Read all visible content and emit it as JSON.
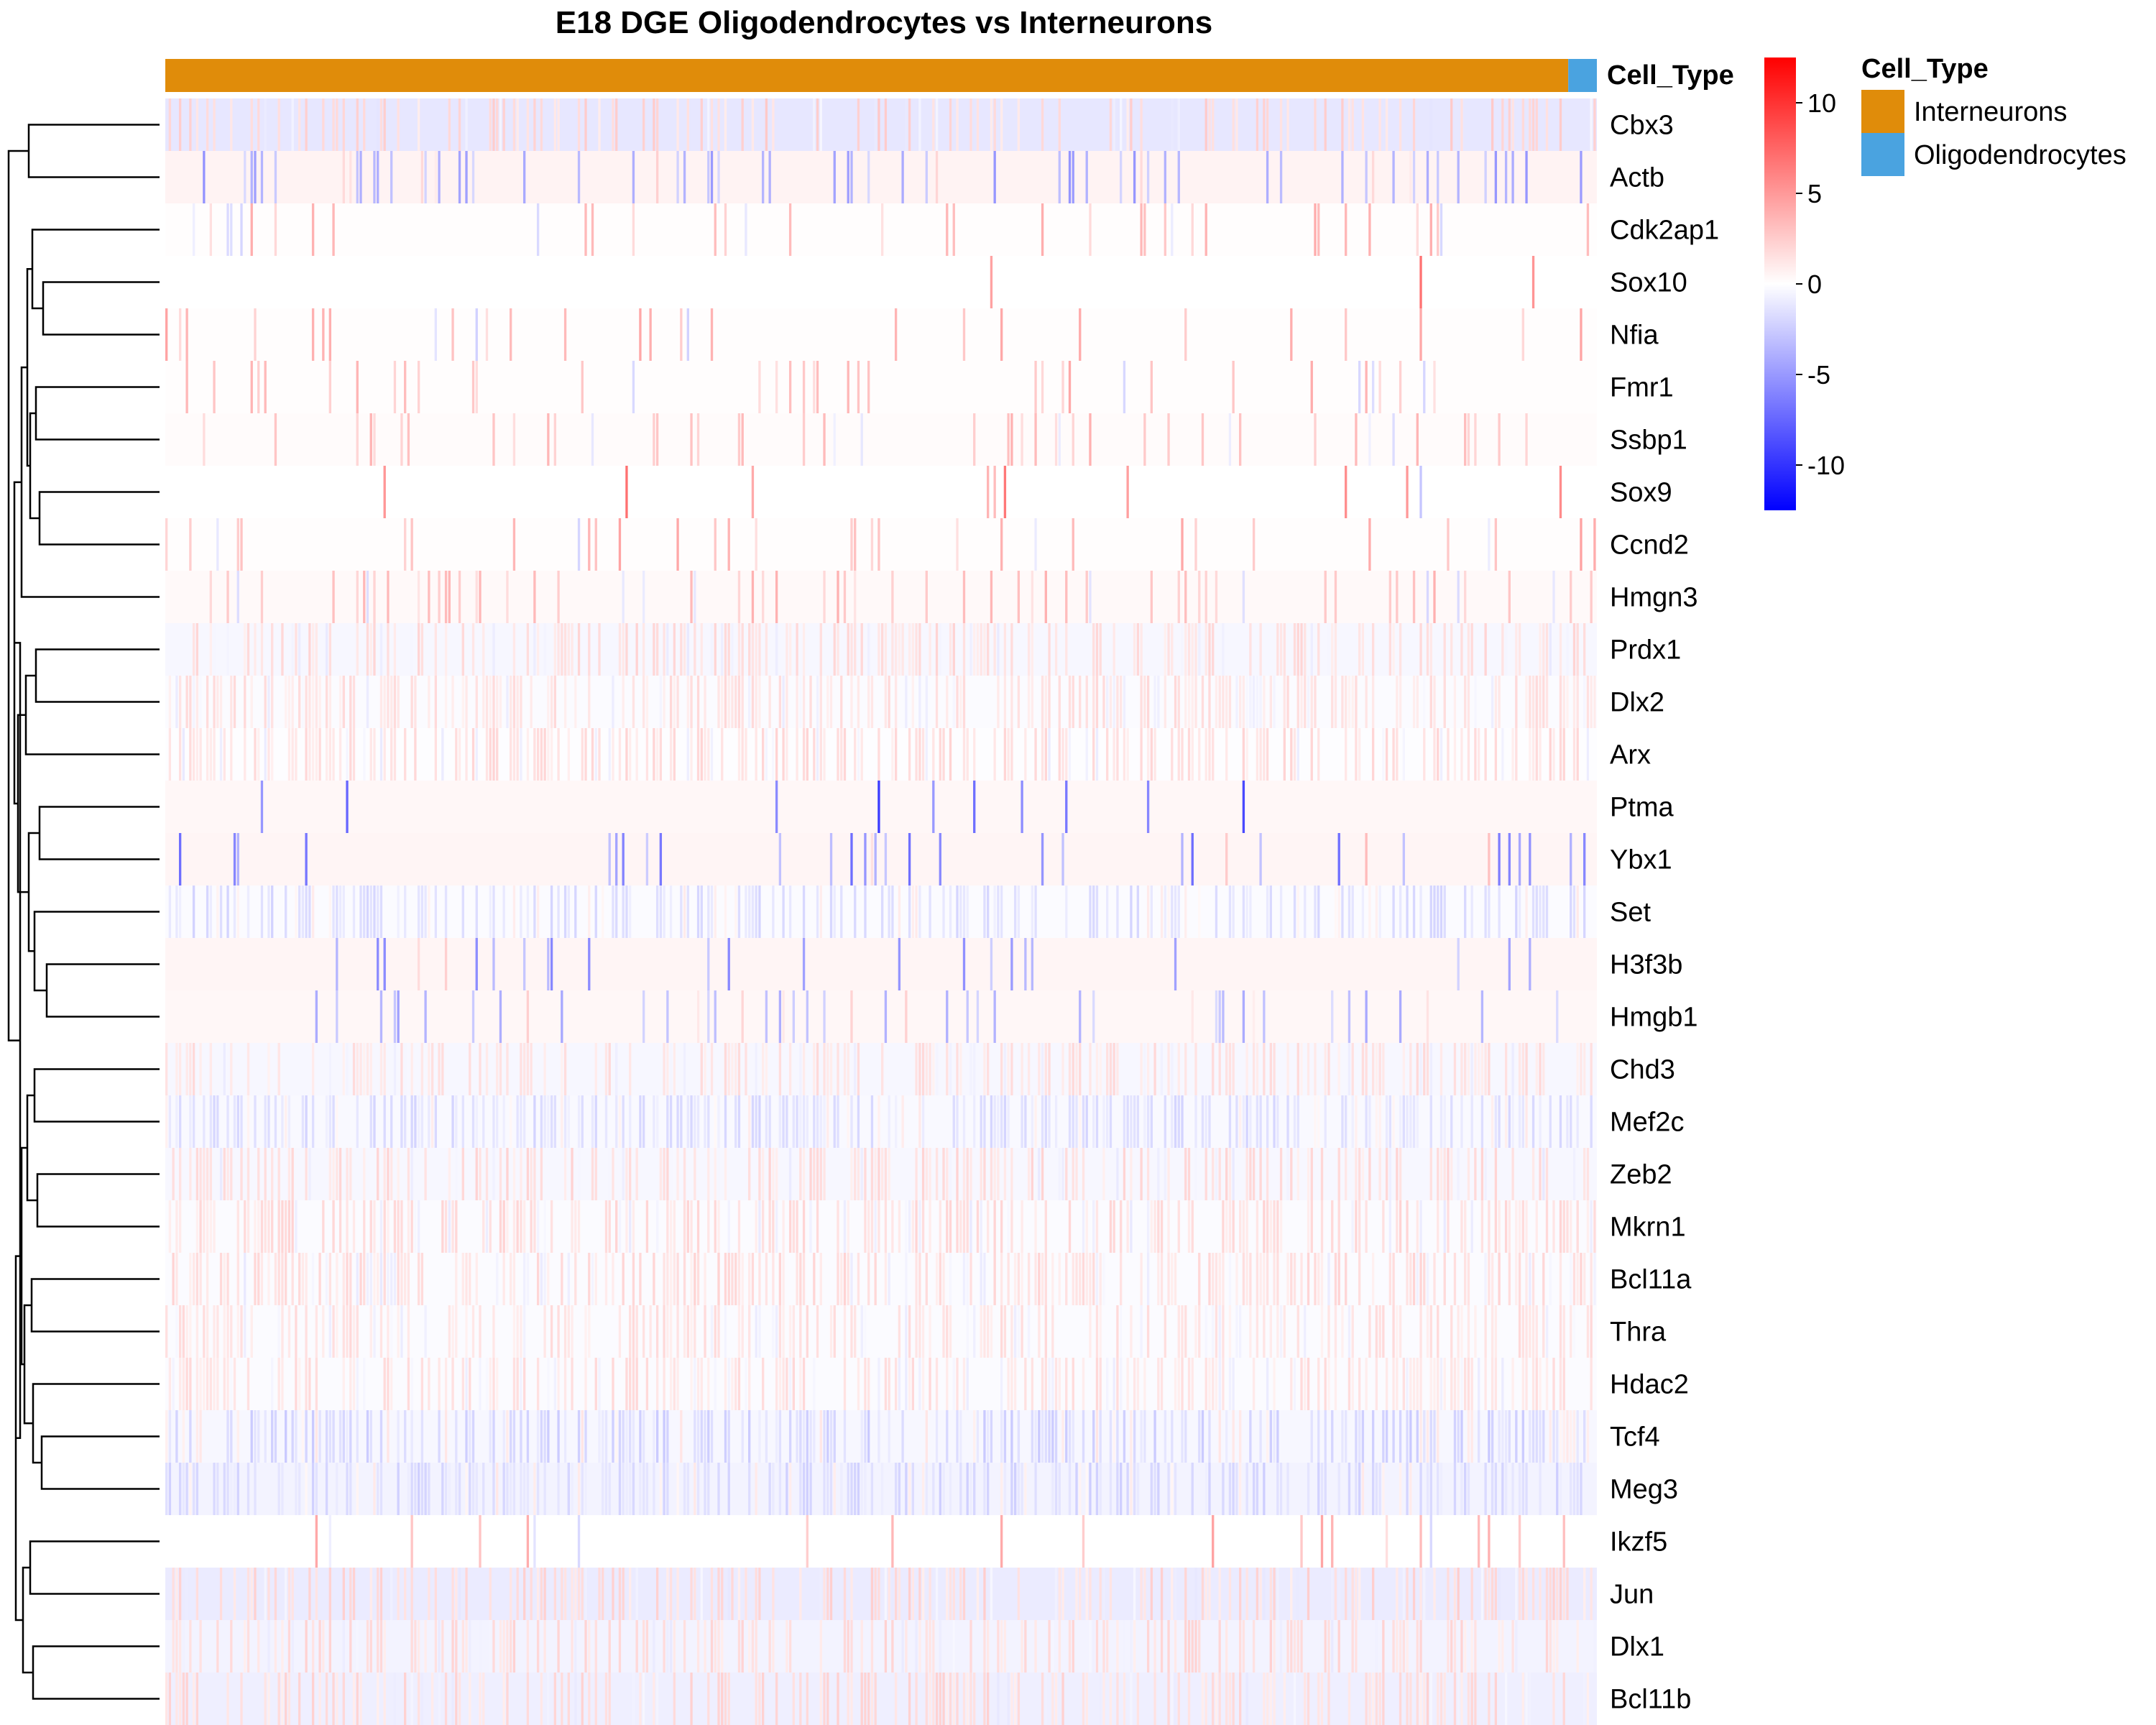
{
  "chart_data": {
    "type": "heatmap",
    "title": "E18 DGE Oligodendrocytes vs Interneurons",
    "annotation": {
      "label": "Cell_Type",
      "legend_title": "Cell_Type",
      "groups": [
        {
          "name": "Interneurons",
          "color": "#E08C0A",
          "fraction": 0.98
        },
        {
          "name": "Oligodendrocytes",
          "color": "#4AA3E0",
          "fraction": 0.02
        }
      ]
    },
    "genes": [
      "Cbx3",
      "Actb",
      "Cdk2ap1",
      "Sox10",
      "Nfia",
      "Fmr1",
      "Ssbp1",
      "Sox9",
      "Ccnd2",
      "Hmgn3",
      "Prdx1",
      "Dlx2",
      "Arx",
      "Ptma",
      "Ybx1",
      "Set",
      "H3f3b",
      "Hmgb1",
      "Chd3",
      "Mef2c",
      "Zeb2",
      "Mkrn1",
      "Bcl11a",
      "Thra",
      "Hdac2",
      "Tcf4",
      "Meg3",
      "Ikzf5",
      "Jun",
      "Dlx1",
      "Bcl11b"
    ],
    "color_scale": {
      "min": -12.5,
      "max": 12.5,
      "ticks": [
        10,
        5,
        0,
        -5,
        -10
      ],
      "tick_labels": [
        "10",
        "5",
        "0",
        "-5",
        "-10"
      ],
      "low_color": "#0000FF",
      "mid_color": "#FFFFFF",
      "high_color": "#FF0000"
    },
    "legend_placement": "right",
    "row_dendrogram": true,
    "column_dendrogram": false
  }
}
